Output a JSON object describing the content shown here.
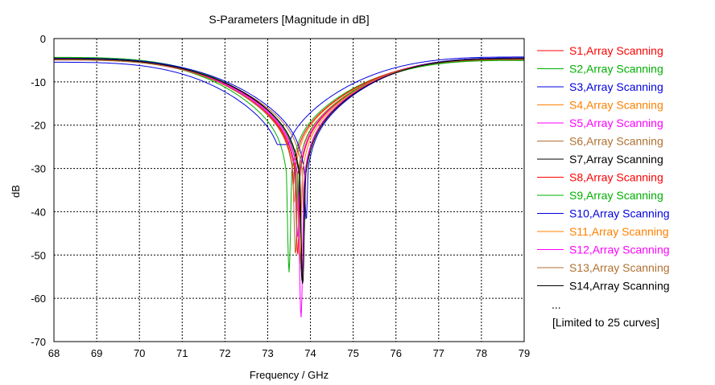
{
  "chart_data": {
    "type": "line",
    "title": "S-Parameters [Magnitude in dB]",
    "xlabel": "Frequency / GHz",
    "ylabel": "dB",
    "xlim": [
      68,
      79
    ],
    "ylim": [
      -70,
      0
    ],
    "x_ticks": [
      68,
      69,
      70,
      71,
      72,
      73,
      74,
      75,
      76,
      77,
      78,
      79
    ],
    "y_ticks": [
      0,
      -10,
      -20,
      -30,
      -40,
      -50,
      -60,
      -70
    ],
    "grid": true,
    "legend_position": "right",
    "legend_more": "...",
    "legend_note": "[Limited to 25 curves]",
    "series": [
      {
        "name": "S1,Array Scanning",
        "color": "#FF0000",
        "f0": 73.7,
        "dip": -50,
        "q": 0.55,
        "y_start": -4.8,
        "y_end": -4.6
      },
      {
        "name": "S2,Array Scanning",
        "color": "#00B000",
        "f0": 73.5,
        "dip": -54,
        "q": 0.48,
        "y_start": -4.5,
        "y_end": -4.9
      },
      {
        "name": "S3,Array Scanning",
        "color": "#0000E0",
        "f0": 73.35,
        "dip": -24.5,
        "q": 0.7,
        "y_start": -5.4,
        "y_end": -4.2
      },
      {
        "name": "S4,Array Scanning",
        "color": "#FF8000",
        "f0": 73.62,
        "dip": -38,
        "q": 0.5,
        "y_start": -4.6,
        "y_end": -4.7
      },
      {
        "name": "S5,Array Scanning",
        "color": "#FF00FF",
        "f0": 73.7,
        "dip": -46,
        "q": 0.52,
        "y_start": -4.7,
        "y_end": -4.5
      },
      {
        "name": "S6,Array Scanning",
        "color": "#B07030",
        "f0": 73.85,
        "dip": -42,
        "q": 0.54,
        "y_start": -4.9,
        "y_end": -4.6
      },
      {
        "name": "S7,Array Scanning",
        "color": "#000000",
        "f0": 73.8,
        "dip": -56,
        "q": 0.52,
        "y_start": -4.4,
        "y_end": -4.4
      },
      {
        "name": "S8,Array Scanning",
        "color": "#FF0000",
        "f0": 73.6,
        "dip": -34,
        "q": 0.5,
        "y_start": -4.6,
        "y_end": -4.8
      },
      {
        "name": "S9,Array Scanning",
        "color": "#00B000",
        "f0": 73.7,
        "dip": -40,
        "q": 0.42,
        "y_start": -4.3,
        "y_end": -5.0
      },
      {
        "name": "S10,Array Scanning",
        "color": "#0000E0",
        "f0": 73.9,
        "dip": -42,
        "q": 0.55,
        "y_start": -4.5,
        "y_end": -4.4
      },
      {
        "name": "S11,Array Scanning",
        "color": "#FF8000",
        "f0": 73.75,
        "dip": -52,
        "q": 0.52,
        "y_start": -4.6,
        "y_end": -4.6
      },
      {
        "name": "S12,Array Scanning",
        "color": "#FF00FF",
        "f0": 73.78,
        "dip": -64.5,
        "q": 0.5,
        "y_start": -4.6,
        "y_end": -4.5
      },
      {
        "name": "S13,Array Scanning",
        "color": "#B07030",
        "f0": 73.65,
        "dip": -50,
        "q": 0.53,
        "y_start": -4.7,
        "y_end": -4.7
      },
      {
        "name": "S14,Array Scanning",
        "color": "#000000",
        "f0": 73.82,
        "dip": -57,
        "q": 0.55,
        "y_start": -4.6,
        "y_end": -4.5
      }
    ]
  }
}
